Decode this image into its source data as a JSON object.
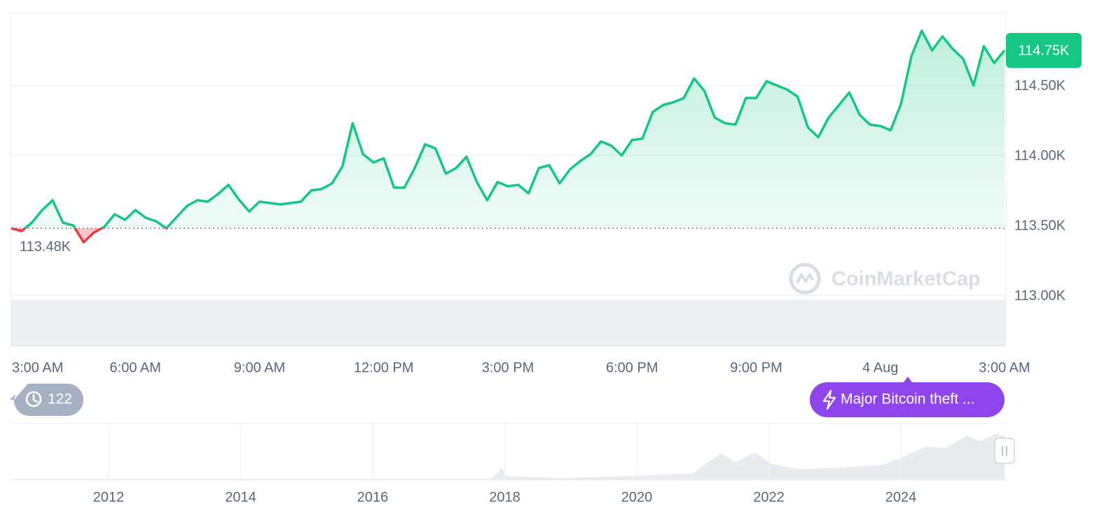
{
  "chart_data": {
    "type": "line",
    "x": [
      3,
      3.25,
      3.5,
      3.75,
      4,
      4.25,
      4.5,
      4.75,
      5,
      5.25,
      5.5,
      5.75,
      6,
      6.25,
      6.5,
      6.75,
      7,
      7.25,
      7.5,
      7.75,
      8,
      8.25,
      8.5,
      8.75,
      9,
      9.25,
      9.5,
      9.75,
      10,
      10.25,
      10.5,
      10.75,
      11,
      11.25,
      11.5,
      11.75,
      12,
      12.25,
      12.5,
      12.75,
      13,
      13.25,
      13.5,
      13.75,
      14,
      14.25,
      14.5,
      14.75,
      15,
      15.25,
      15.5,
      15.75,
      16,
      16.25,
      16.5,
      16.75,
      17,
      17.25,
      17.5,
      17.75,
      18,
      18.25,
      18.5,
      18.75,
      19,
      19.25,
      19.5,
      19.75,
      20,
      20.25,
      20.5,
      20.75,
      21,
      21.25,
      21.5,
      21.75,
      22,
      22.25,
      22.5,
      22.75,
      23,
      23.25,
      23.5,
      23.75,
      24,
      24.25,
      24.5,
      24.75,
      25,
      25.25,
      25.5,
      25.75,
      26,
      26.25,
      26.5,
      26.75,
      27
    ],
    "values": [
      113480,
      113460,
      113520,
      113610,
      113680,
      113520,
      113500,
      113380,
      113450,
      113490,
      113580,
      113540,
      113610,
      113555,
      113530,
      113480,
      113560,
      113640,
      113680,
      113670,
      113725,
      113790,
      113685,
      113600,
      113670,
      113660,
      113650,
      113660,
      113670,
      113750,
      113760,
      113800,
      113920,
      114230,
      114010,
      113950,
      113980,
      113770,
      113770,
      113910,
      114080,
      114050,
      113870,
      113910,
      113990,
      113810,
      113680,
      113810,
      113780,
      113790,
      113730,
      113910,
      113930,
      113800,
      113900,
      113960,
      114010,
      114100,
      114070,
      114000,
      114110,
      114120,
      114310,
      114360,
      114380,
      114410,
      114550,
      114460,
      114270,
      114230,
      114220,
      114410,
      114410,
      114530,
      114500,
      114470,
      114420,
      114200,
      114130,
      114270,
      114360,
      114450,
      114290,
      114220,
      114210,
      114180,
      114370,
      114710,
      114890,
      114750,
      114850,
      114760,
      114690,
      114500,
      114780,
      114660,
      114750
    ],
    "color": "#16c784",
    "down_color": "#ea3943",
    "baseline": {
      "value": 113480,
      "label": "113.48K"
    },
    "last_price": {
      "value": 114750,
      "label": "114.75K"
    },
    "xlim": [
      3,
      27
    ],
    "xticks": [
      {
        "value": 3,
        "label": "3:00 AM"
      },
      {
        "value": 6,
        "label": "6:00 AM"
      },
      {
        "value": 9,
        "label": "9:00 AM"
      },
      {
        "value": 12,
        "label": "12:00 PM"
      },
      {
        "value": 15,
        "label": "3:00 PM"
      },
      {
        "value": 18,
        "label": "6:00 PM"
      },
      {
        "value": 21,
        "label": "9:00 PM"
      },
      {
        "value": 24,
        "label": "4 Aug"
      },
      {
        "value": 27,
        "label": "3:00 AM"
      }
    ],
    "ylim": [
      113000,
      115000
    ],
    "yticks": [
      {
        "value": 113000,
        "label": "113.00K"
      },
      {
        "value": 113500,
        "label": "113.50K"
      },
      {
        "value": 114000,
        "label": "114.00K"
      },
      {
        "value": 114500,
        "label": "114.50K"
      }
    ],
    "grid": true
  },
  "navigator": {
    "labels": [
      2012,
      2014,
      2016,
      2018,
      2020,
      2022,
      2024
    ]
  },
  "ui": {
    "history_count": 122,
    "news": "Major Bitcoin theft ...",
    "watermark": "CoinMarketCap"
  }
}
